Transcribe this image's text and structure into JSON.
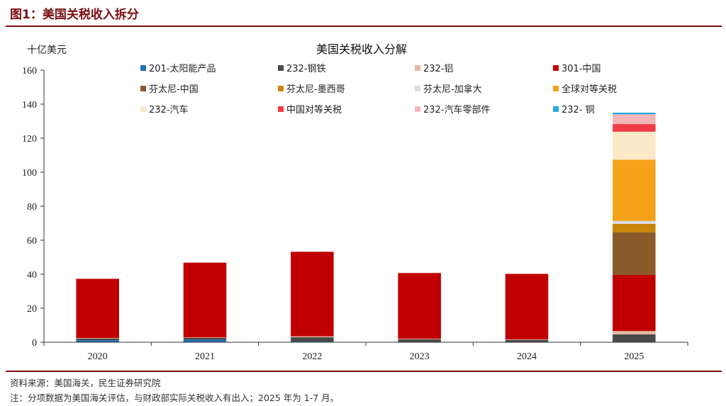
{
  "figure": {
    "title": "图1：美国关税收入拆分",
    "source": "资料来源：美国海关，民生证券研究院",
    "note": "注：分项数据为美国海关评估，与财政部实际关税收入有出入；2025 年为 1-7 月。"
  },
  "chart_data": {
    "type": "bar",
    "stacked": true,
    "title": "美国关税收入分解",
    "ylabel": "十亿美元",
    "xlabel": "",
    "ylim": [
      0,
      160
    ],
    "yticks": [
      0,
      20,
      40,
      60,
      80,
      100,
      120,
      140,
      160
    ],
    "legend_position": "top",
    "categories": [
      "2020",
      "2021",
      "2022",
      "2023",
      "2024",
      "2025"
    ],
    "series": [
      {
        "name": "201-太阳能产品",
        "color": "#1f6fb5",
        "values": [
          1.2,
          1.5,
          0.4,
          0.2,
          0.2,
          0.1
        ]
      },
      {
        "name": "232-钢铁",
        "color": "#4a4a4a",
        "values": [
          1.0,
          1.0,
          2.5,
          1.5,
          1.2,
          4.5
        ]
      },
      {
        "name": "232-铝",
        "color": "#e3b9a2",
        "values": [
          0.3,
          0.3,
          0.6,
          0.3,
          0.3,
          2.0
        ]
      },
      {
        "name": "301-中国",
        "color": "#c00000",
        "values": [
          34.8,
          44.0,
          49.7,
          38.7,
          38.5,
          33.0
        ]
      },
      {
        "name": "芬太尼-中国",
        "color": "#8b5a2b",
        "values": [
          0,
          0,
          0,
          0,
          0,
          25.0
        ]
      },
      {
        "name": "芬太尼-墨西哥",
        "color": "#c8860a",
        "values": [
          0,
          0,
          0,
          0,
          0,
          5.0
        ]
      },
      {
        "name": "芬太尼-加拿大",
        "color": "#d9dce3",
        "values": [
          0,
          0,
          0,
          0,
          0,
          1.7
        ]
      },
      {
        "name": "全球对等关税",
        "color": "#f5a21b",
        "values": [
          0,
          0,
          0,
          0,
          0,
          36.0
        ]
      },
      {
        "name": "232-汽车",
        "color": "#fde9c8",
        "values": [
          0,
          0,
          0,
          0,
          0,
          16.5
        ]
      },
      {
        "name": "中国对等关税",
        "color": "#f03c46",
        "values": [
          0,
          0,
          0,
          0,
          0,
          4.5
        ]
      },
      {
        "name": "232-汽车零部件",
        "color": "#f4b6b9",
        "values": [
          0,
          0,
          0,
          0,
          0,
          5.7
        ]
      },
      {
        "name": "232- 铜",
        "color": "#29abe2",
        "values": [
          0,
          0,
          0,
          0,
          0,
          1.0
        ]
      }
    ]
  }
}
